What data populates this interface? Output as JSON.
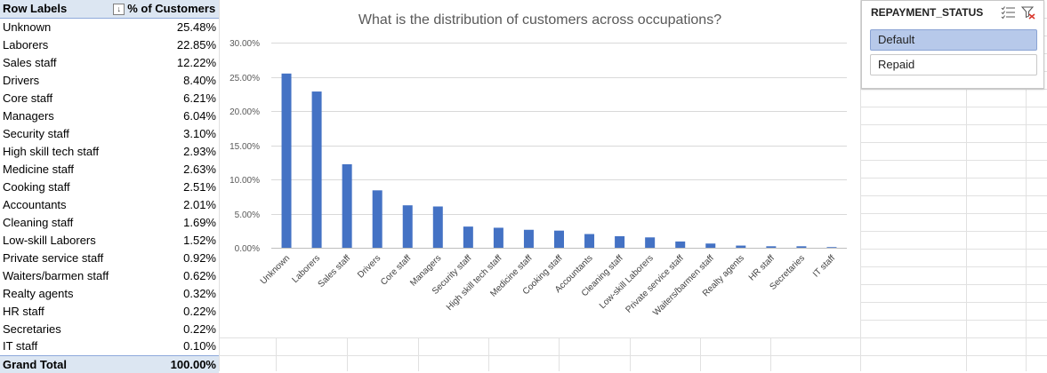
{
  "pivot": {
    "header_labels": "Row Labels",
    "header_values": "% of Customers",
    "rows": [
      {
        "label": "Unknown",
        "value": "25.48%"
      },
      {
        "label": "Laborers",
        "value": "22.85%"
      },
      {
        "label": "Sales staff",
        "value": "12.22%"
      },
      {
        "label": "Drivers",
        "value": "8.40%"
      },
      {
        "label": "Core staff",
        "value": "6.21%"
      },
      {
        "label": "Managers",
        "value": "6.04%"
      },
      {
        "label": "Security staff",
        "value": "3.10%"
      },
      {
        "label": "High skill tech staff",
        "value": "2.93%"
      },
      {
        "label": "Medicine staff",
        "value": "2.63%"
      },
      {
        "label": "Cooking staff",
        "value": "2.51%"
      },
      {
        "label": "Accountants",
        "value": "2.01%"
      },
      {
        "label": "Cleaning staff",
        "value": "1.69%"
      },
      {
        "label": "Low-skill Laborers",
        "value": "1.52%"
      },
      {
        "label": "Private service staff",
        "value": "0.92%"
      },
      {
        "label": "Waiters/barmen staff",
        "value": "0.62%"
      },
      {
        "label": "Realty agents",
        "value": "0.32%"
      },
      {
        "label": "HR staff",
        "value": "0.22%"
      },
      {
        "label": "Secretaries",
        "value": "0.22%"
      },
      {
        "label": "IT staff",
        "value": "0.10%"
      }
    ],
    "total_label": "Grand Total",
    "total_value": "100.00%"
  },
  "slicer": {
    "title": "REPAYMENT_STATUS",
    "items": [
      {
        "label": "Default",
        "selected": true
      },
      {
        "label": "Repaid",
        "selected": false
      }
    ]
  },
  "colors": {
    "bar": "#4472c4",
    "header_fill": "#dce6f2",
    "slicer_selected": "#b7c9ea"
  },
  "chart_data": {
    "type": "bar",
    "title": "What is the distribution of customers across occupations?",
    "categories": [
      "Unknown",
      "Laborers",
      "Sales staff",
      "Drivers",
      "Core staff",
      "Managers",
      "Security staff",
      "High skill tech staff",
      "Medicine staff",
      "Cooking staff",
      "Accountants",
      "Cleaning staff",
      "Low-skill Laborers",
      "Private service staff",
      "Waiters/barmen staff",
      "Realty agents",
      "HR staff",
      "Secretaries",
      "IT staff"
    ],
    "values": [
      25.48,
      22.85,
      12.22,
      8.4,
      6.21,
      6.04,
      3.1,
      2.93,
      2.63,
      2.51,
      2.01,
      1.69,
      1.52,
      0.92,
      0.62,
      0.32,
      0.22,
      0.22,
      0.1
    ],
    "ylim": [
      0,
      30
    ],
    "yticks": [
      "0.00%",
      "5.00%",
      "10.00%",
      "15.00%",
      "20.00%",
      "25.00%",
      "30.00%"
    ],
    "grid": true
  }
}
